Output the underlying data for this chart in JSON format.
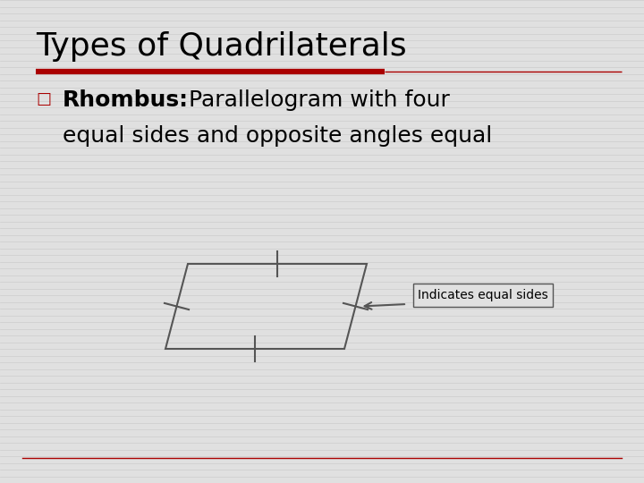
{
  "title": "Types of Quadrilaterals",
  "title_fontsize": 26,
  "title_color": "#000000",
  "red_line_color": "#aa0000",
  "red_line_thick": 4.5,
  "red_line_thin": 1.0,
  "bullet_char": "□",
  "bullet_color": "#aa0000",
  "text_bold": "Rhombus:",
  "text_normal": "  Parallelogram with four",
  "text_line2": "equal sides and opposite angles equal",
  "text_fontsize": 18,
  "text_color": "#000000",
  "background_color": "#e0e0e0",
  "annotation_text": "Indicates equal sides",
  "annotation_fontsize": 10,
  "line_color": "#555555",
  "line_width": 1.5
}
